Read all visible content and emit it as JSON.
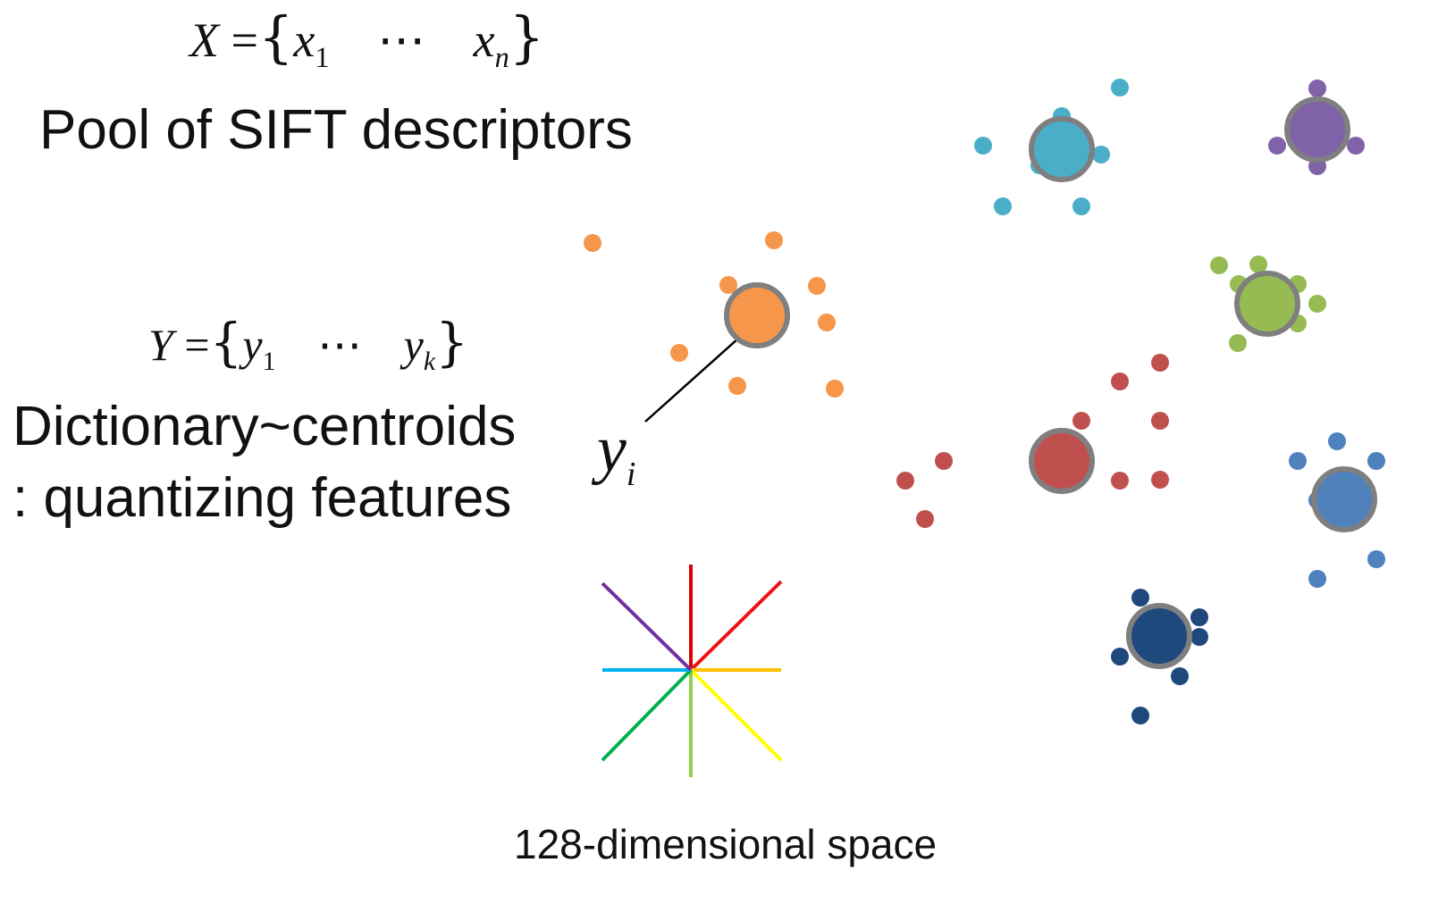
{
  "formula_x": {
    "var": "X",
    "eq": "=",
    "open": "{",
    "first": "x",
    "first_sub": "1",
    "dots": "⋯",
    "last": "x",
    "last_sub": "n",
    "close": "}"
  },
  "pool_label": "Pool of SIFT descriptors",
  "formula_y": {
    "var": "Y",
    "eq": "=",
    "open": "{",
    "first": "y",
    "first_sub": "1",
    "dots": "⋯",
    "last": "y",
    "last_sub": "k",
    "close": "}"
  },
  "dictionary_label": {
    "line1": "Dictionary~centroids",
    "line2": ": quantizing features"
  },
  "pointer_label": {
    "var": "y",
    "sub": "i"
  },
  "space_label": "128-dimensional space",
  "colors": {
    "orange": "#f5964a",
    "cyan": "#4aaec8",
    "purple": "#8062a8",
    "green": "#96bb52",
    "red": "#c0504d",
    "blue": "#4f81bd",
    "navy": "#1f497d",
    "ring": "#7f7f7f"
  }
}
